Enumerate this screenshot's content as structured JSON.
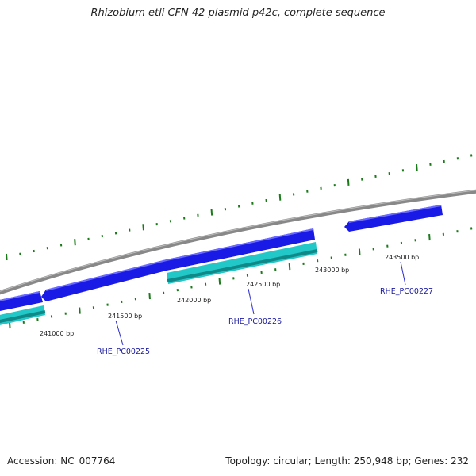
{
  "title": "Rhizobium etli CFN 42 plasmid p42c, complete sequence",
  "footer": {
    "accession": "Accession: NC_007764",
    "topology": "Topology: circular; Length: 250,948 bp; Genes: 232"
  },
  "colors": {
    "backbone": "#888888",
    "forward_gene": "#1a1ae6",
    "reverse_gene": "#22c8c8",
    "tick": "#1a7a1a",
    "gene_label": "#1a1aa0",
    "leader": "#2a2ad0"
  },
  "position_labels": [
    "241000 bp",
    "241500 bp",
    "242000 bp",
    "242500 bp",
    "243000 bp",
    "243500 bp"
  ],
  "genes": [
    {
      "id": "RHE_PC00225",
      "strand": "reverse"
    },
    {
      "id": "RHE_PC00226",
      "strand": "reverse"
    },
    {
      "id": "RHE_PC00227",
      "strand": "forward"
    }
  ]
}
